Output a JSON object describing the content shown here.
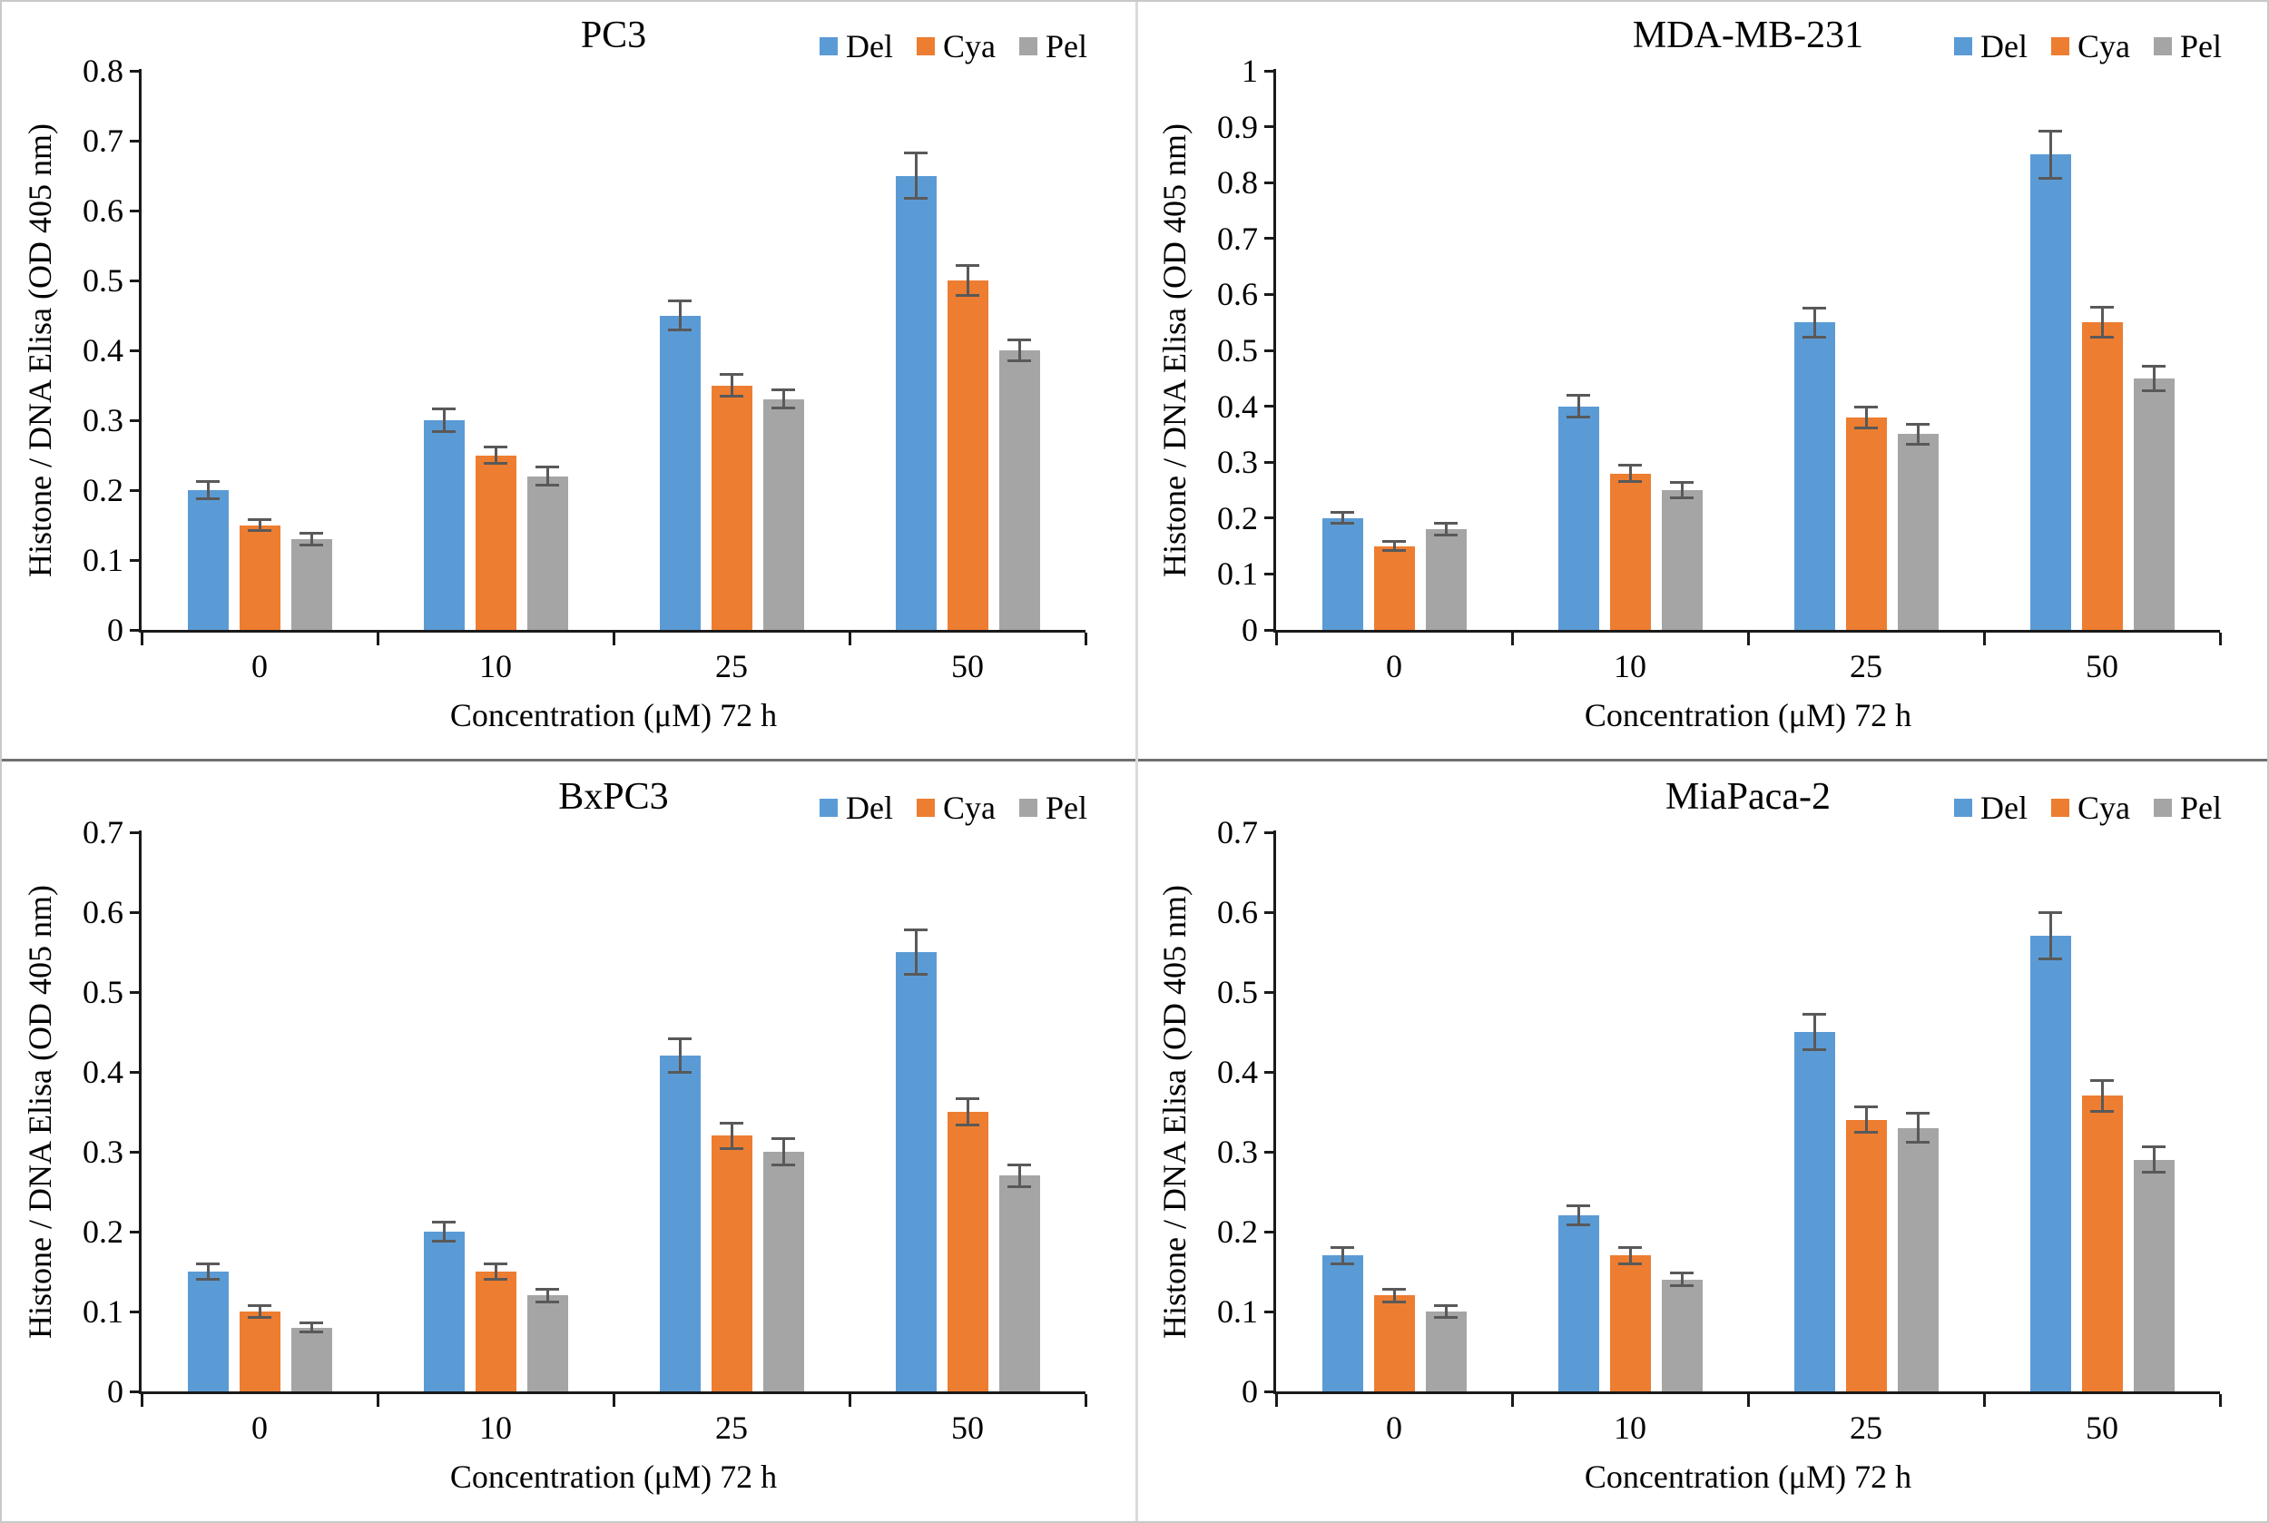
{
  "figure": {
    "background": "#ffffff",
    "outer_border_color": "#c9c9c9",
    "divider_horizontal_color": "#707070",
    "divider_vertical_color": "#dadada"
  },
  "palette": {
    "del": "#5B9BD5",
    "cya": "#ED7D31",
    "pel": "#A5A5A5",
    "error_bar": "#595959",
    "axis": "#1a1a1a"
  },
  "legend_labels": [
    "Del",
    "Cya",
    "Pel"
  ],
  "chart_data": [
    {
      "type": "bar",
      "title": "PC3",
      "xlabel": "Concentration (μM) 72 h",
      "ylabel": "Histone / DNA Elisa (OD 405 nm)",
      "categories": [
        "0",
        "10",
        "25",
        "50"
      ],
      "ylim": [
        0,
        0.8
      ],
      "ytick_labels": [
        "0",
        "0.1",
        "0.2",
        "0.3",
        "0.4",
        "0.5",
        "0.6",
        "0.7",
        "0.8"
      ],
      "grid": false,
      "legend_position": "top-right",
      "series": [
        {
          "name": "Del",
          "color": "#5B9BD5",
          "values": [
            0.2,
            0.3,
            0.45,
            0.65
          ],
          "errors": [
            0.012,
            0.016,
            0.021,
            0.033
          ]
        },
        {
          "name": "Cya",
          "color": "#ED7D31",
          "values": [
            0.15,
            0.25,
            0.35,
            0.5
          ],
          "errors": [
            0.008,
            0.012,
            0.016,
            0.021
          ]
        },
        {
          "name": "Pel",
          "color": "#A5A5A5",
          "values": [
            0.13,
            0.22,
            0.33,
            0.4
          ],
          "errors": [
            0.008,
            0.013,
            0.013,
            0.015
          ]
        }
      ]
    },
    {
      "type": "bar",
      "title": "MDA-MB-231",
      "xlabel": "Concentration (μM) 72 h",
      "ylabel": "Histone / DNA Elisa (OD 405 nm)",
      "categories": [
        "0",
        "10",
        "25",
        "50"
      ],
      "ylim": [
        0,
        1
      ],
      "ytick_labels": [
        "0",
        "0.1",
        "0.2",
        "0.3",
        "0.4",
        "0.5",
        "0.6",
        "0.7",
        "0.8",
        "0.9",
        "1"
      ],
      "grid": false,
      "legend_position": "top-right",
      "series": [
        {
          "name": "Del",
          "color": "#5B9BD5",
          "values": [
            0.2,
            0.4,
            0.55,
            0.85
          ],
          "errors": [
            0.01,
            0.02,
            0.026,
            0.042
          ]
        },
        {
          "name": "Cya",
          "color": "#ED7D31",
          "values": [
            0.15,
            0.28,
            0.38,
            0.55
          ],
          "errors": [
            0.008,
            0.015,
            0.019,
            0.027
          ]
        },
        {
          "name": "Pel",
          "color": "#A5A5A5",
          "values": [
            0.18,
            0.25,
            0.35,
            0.45
          ],
          "errors": [
            0.01,
            0.013,
            0.018,
            0.022
          ]
        }
      ]
    },
    {
      "type": "bar",
      "title": "BxPC3",
      "xlabel": "Concentration (μM) 72 h",
      "ylabel": "Histone / DNA Elisa (OD 405 nm)",
      "categories": [
        "0",
        "10",
        "25",
        "50"
      ],
      "ylim": [
        0,
        0.7
      ],
      "ytick_labels": [
        "0",
        "0.1",
        "0.2",
        "0.3",
        "0.4",
        "0.5",
        "0.6",
        "0.7"
      ],
      "grid": false,
      "legend_position": "top-right",
      "series": [
        {
          "name": "Del",
          "color": "#5B9BD5",
          "values": [
            0.15,
            0.2,
            0.42,
            0.55
          ],
          "errors": [
            0.01,
            0.012,
            0.021,
            0.028
          ]
        },
        {
          "name": "Cya",
          "color": "#ED7D31",
          "values": [
            0.1,
            0.15,
            0.32,
            0.35
          ],
          "errors": [
            0.007,
            0.01,
            0.016,
            0.017
          ]
        },
        {
          "name": "Pel",
          "color": "#A5A5A5",
          "values": [
            0.08,
            0.12,
            0.3,
            0.27
          ],
          "errors": [
            0.006,
            0.008,
            0.016,
            0.014
          ]
        }
      ]
    },
    {
      "type": "bar",
      "title": "MiaPaca-2",
      "xlabel": "Concentration (μM) 72 h",
      "ylabel": "Histone / DNA Elisa (OD 405 nm)",
      "categories": [
        "0",
        "10",
        "25",
        "50"
      ],
      "ylim": [
        0,
        0.7
      ],
      "ytick_labels": [
        "0",
        "0.1",
        "0.2",
        "0.3",
        "0.4",
        "0.5",
        "0.6",
        "0.7"
      ],
      "grid": false,
      "legend_position": "top-right",
      "series": [
        {
          "name": "Del",
          "color": "#5B9BD5",
          "values": [
            0.17,
            0.22,
            0.45,
            0.57
          ],
          "errors": [
            0.01,
            0.012,
            0.022,
            0.029
          ]
        },
        {
          "name": "Cya",
          "color": "#ED7D31",
          "values": [
            0.12,
            0.17,
            0.34,
            0.37
          ],
          "errors": [
            0.008,
            0.01,
            0.016,
            0.019
          ]
        },
        {
          "name": "Pel",
          "color": "#A5A5A5",
          "values": [
            0.1,
            0.14,
            0.33,
            0.29
          ],
          "errors": [
            0.007,
            0.008,
            0.018,
            0.016
          ]
        }
      ]
    }
  ]
}
